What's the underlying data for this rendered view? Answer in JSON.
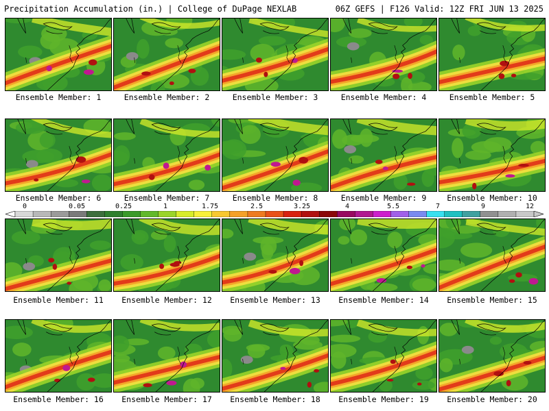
{
  "header": {
    "left_title": "Precipitation Accumulation (in.) | College of DuPage NEXLAB",
    "right_title": "06Z GEFS | F126 Valid: 12Z FRI JUN 13 2025"
  },
  "colorbar": {
    "tick_labels": [
      "0",
      "0.05",
      "0.25",
      "1",
      "1.75",
      "2.5",
      "3.25",
      "4",
      "5.5",
      "7",
      "9",
      "12"
    ],
    "colors": [
      "#d8d8d8",
      "#b8b8b8",
      "#9a9a9a",
      "#7a7a7a",
      "#3c6e3c",
      "#2f7f2f",
      "#3a9a2a",
      "#62b82a",
      "#9ad42a",
      "#d8ec2a",
      "#f8f03a",
      "#f8c830",
      "#f4a028",
      "#ee7a20",
      "#e85018",
      "#d82010",
      "#b01010",
      "#8a0808",
      "#980860",
      "#b01890",
      "#cc20cc",
      "#a060e8",
      "#7a8af0",
      "#38e0f0",
      "#20c0c0",
      "#40a0a0",
      "#909090",
      "#b0b0b0",
      "#c8c8c8"
    ]
  },
  "members": [
    {
      "label": "Ensemble Member: 1"
    },
    {
      "label": "Ensemble Member: 2"
    },
    {
      "label": "Ensemble Member: 3"
    },
    {
      "label": "Ensemble Member: 4"
    },
    {
      "label": "Ensemble Member: 5"
    },
    {
      "label": "Ensemble Member: 6"
    },
    {
      "label": "Ensemble Member: 7"
    },
    {
      "label": "Ensemble Member: 8"
    },
    {
      "label": "Ensemble Member: 9"
    },
    {
      "label": "Ensemble Member: 10"
    },
    {
      "label": "Ensemble Member: 11"
    },
    {
      "label": "Ensemble Member: 12"
    },
    {
      "label": "Ensemble Member: 13"
    },
    {
      "label": "Ensemble Member: 14"
    },
    {
      "label": "Ensemble Member: 15"
    },
    {
      "label": "Ensemble Member: 16"
    },
    {
      "label": "Ensemble Member: 17"
    },
    {
      "label": "Ensemble Member: 18"
    },
    {
      "label": "Ensemble Member: 19"
    },
    {
      "label": "Ensemble Member: 20"
    }
  ]
}
